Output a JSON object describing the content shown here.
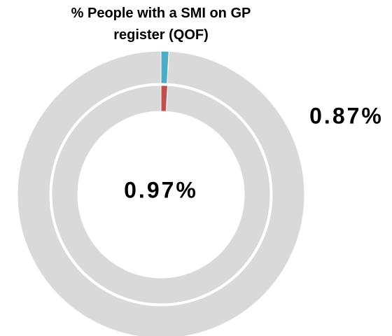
{
  "chart_data": {
    "type": "donut",
    "title": "% People with a SMI on GP register (QOF)",
    "ylim": [
      0,
      100
    ],
    "remainder_color": "#d9d9d9",
    "series": [
      {
        "color": "#4bacc6",
        "values": [
          0.87
        ],
        "value_labels": [
          "0.87%"
        ]
      },
      {
        "color": "#c0504d",
        "values": [
          0.97
        ],
        "value_labels": [
          "0.97%"
        ]
      }
    ]
  }
}
